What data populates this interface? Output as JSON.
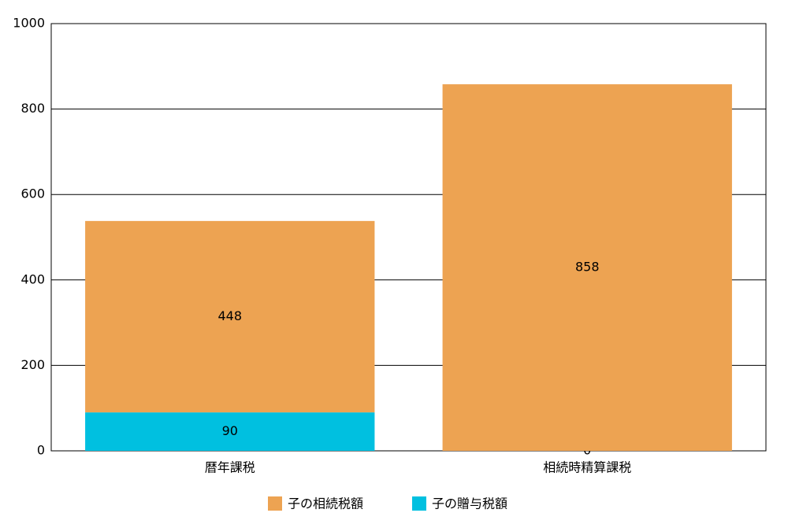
{
  "chart_data": {
    "type": "stacked_bar",
    "categories": [
      "暦年課税",
      "相続時精算課税"
    ],
    "series": [
      {
        "name": "子の相続税額",
        "color": "#eda352",
        "values": [
          448,
          858
        ]
      },
      {
        "name": "子の贈与税額",
        "color": "#00c0e0",
        "values": [
          90,
          0
        ]
      }
    ],
    "ylim": [
      0,
      1000
    ],
    "yticks": [
      0,
      200,
      400,
      600,
      800,
      1000
    ],
    "grid": true,
    "legend": "bottom"
  }
}
